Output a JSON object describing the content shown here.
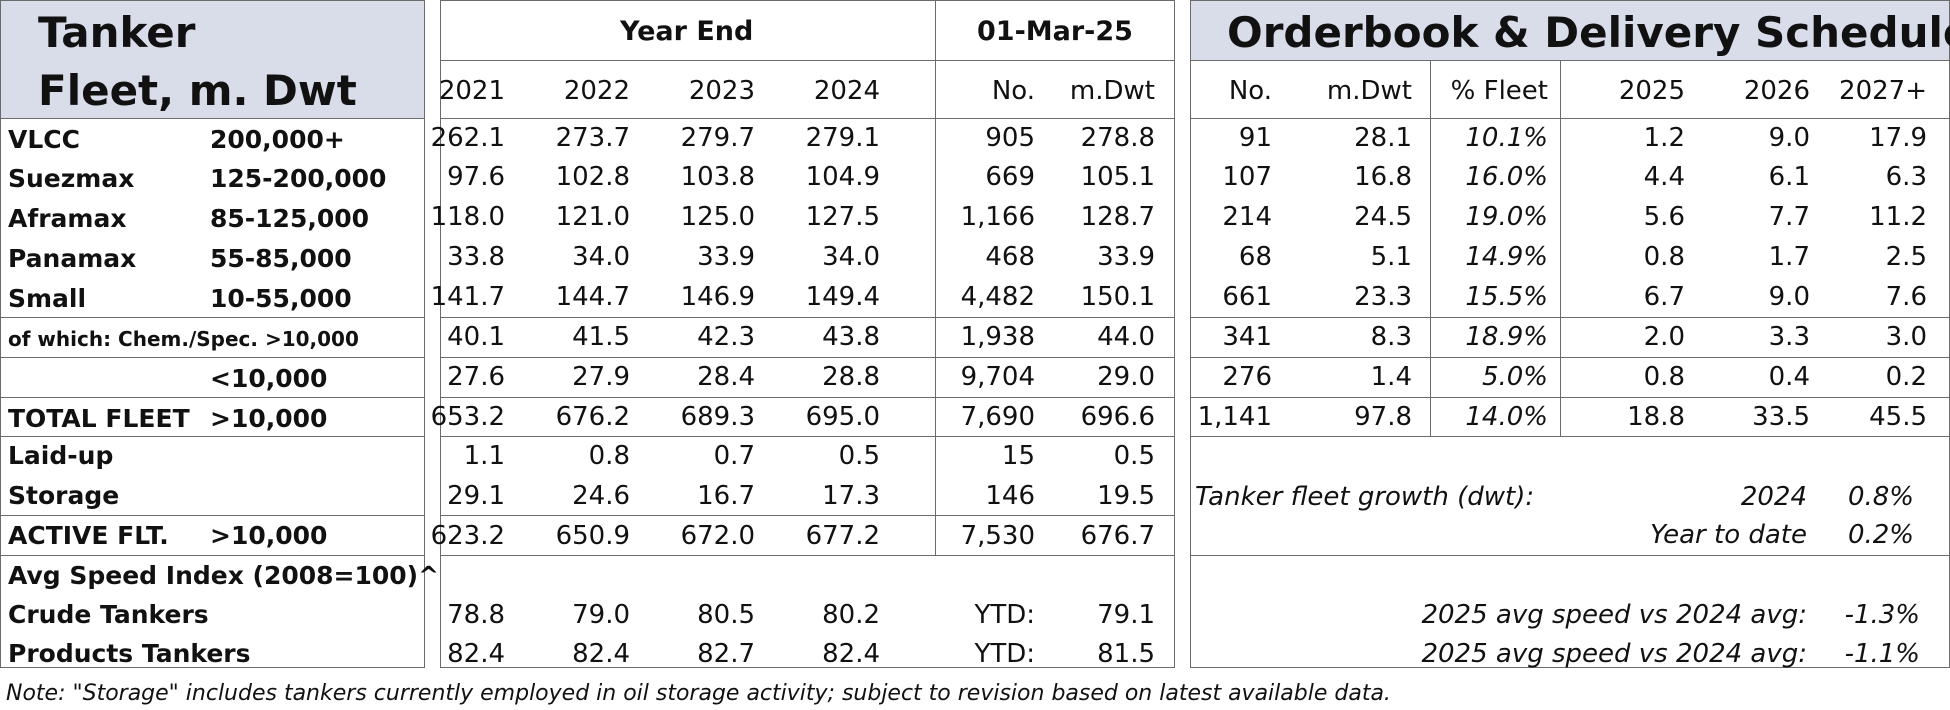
{
  "left_title": [
    "Tanker",
    "Fleet, m. Dwt"
  ],
  "mid_header": {
    "year_end": "Year End",
    "date": "01-Mar-25",
    "columns": [
      "2021",
      "2022",
      "2023",
      "2024",
      "No.",
      "m.Dwt"
    ]
  },
  "right_header": {
    "title": "Orderbook & Delivery Schedule",
    "columns": [
      "No.",
      "m.Dwt",
      "% Fleet",
      "2025",
      "2026",
      "2027+"
    ]
  },
  "fleet_rows": [
    {
      "name": "VLCC",
      "size": "200,000+",
      "ye": [
        "262.1",
        "273.7",
        "279.7",
        "279.1"
      ],
      "no": "905",
      "dwt": "278.8",
      "ob": [
        "91",
        "28.1",
        "10.1%",
        "1.2",
        "9.0",
        "17.9"
      ]
    },
    {
      "name": "Suezmax",
      "size": "125-200,000",
      "ye": [
        "97.6",
        "102.8",
        "103.8",
        "104.9"
      ],
      "no": "669",
      "dwt": "105.1",
      "ob": [
        "107",
        "16.8",
        "16.0%",
        "4.4",
        "6.1",
        "6.3"
      ]
    },
    {
      "name": "Aframax",
      "size": "85-125,000",
      "ye": [
        "118.0",
        "121.0",
        "125.0",
        "127.5"
      ],
      "no": "1,166",
      "dwt": "128.7",
      "ob": [
        "214",
        "24.5",
        "19.0%",
        "5.6",
        "7.7",
        "11.2"
      ]
    },
    {
      "name": "Panamax",
      "size": "55-85,000",
      "ye": [
        "33.8",
        "34.0",
        "33.9",
        "34.0"
      ],
      "no": "468",
      "dwt": "33.9",
      "ob": [
        "68",
        "5.1",
        "14.9%",
        "0.8",
        "1.7",
        "2.5"
      ]
    },
    {
      "name": "Small",
      "size": "10-55,000",
      "ye": [
        "141.7",
        "144.7",
        "146.9",
        "149.4"
      ],
      "no": "4,482",
      "dwt": "150.1",
      "ob": [
        "661",
        "23.3",
        "15.5%",
        "6.7",
        "9.0",
        "7.6"
      ]
    },
    {
      "name": "of which: Chem./Spec. >10,000",
      "size": "",
      "ye": [
        "40.1",
        "41.5",
        "42.3",
        "43.8"
      ],
      "no": "1,938",
      "dwt": "44.0",
      "ob": [
        "341",
        "8.3",
        "18.9%",
        "2.0",
        "3.3",
        "3.0"
      ]
    },
    {
      "name": "",
      "size": "<10,000",
      "ye": [
        "27.6",
        "27.9",
        "28.4",
        "28.8"
      ],
      "no": "9,704",
      "dwt": "29.0",
      "ob": [
        "276",
        "1.4",
        "5.0%",
        "0.8",
        "0.4",
        "0.2"
      ]
    },
    {
      "name": "TOTAL FLEET",
      "size": ">10,000",
      "ye": [
        "653.2",
        "676.2",
        "689.3",
        "695.0"
      ],
      "no": "7,690",
      "dwt": "696.6",
      "ob": [
        "1,141",
        "97.8",
        "14.0%",
        "18.8",
        "33.5",
        "45.5"
      ]
    }
  ],
  "laidup": {
    "name": "Laid-up",
    "ye": [
      "1.1",
      "0.8",
      "0.7",
      "0.5"
    ],
    "no": "15",
    "dwt": "0.5"
  },
  "storage": {
    "name": "Storage",
    "ye": [
      "29.1",
      "24.6",
      "16.7",
      "17.3"
    ],
    "no": "146",
    "dwt": "19.5"
  },
  "active": {
    "name": "ACTIVE FLT.",
    "size": ">10,000",
    "ye": [
      "623.2",
      "650.9",
      "672.0",
      "677.2"
    ],
    "no": "7,530",
    "dwt": "676.7"
  },
  "speed": {
    "title": "Avg Speed Index (2008=100)^",
    "rows": [
      {
        "name": "Crude Tankers",
        "ye": [
          "78.8",
          "79.0",
          "80.5",
          "80.2"
        ],
        "ytd_label": "YTD:",
        "ytd": "79.1"
      },
      {
        "name": "Products Tankers",
        "ye": [
          "82.4",
          "82.4",
          "82.7",
          "82.4"
        ],
        "ytd_label": "YTD:",
        "ytd": "81.5"
      }
    ]
  },
  "growth": {
    "label": "Tanker fleet growth (dwt):",
    "year_label": "2024",
    "year_value": "0.8%",
    "ytd_label": "Year to date",
    "ytd_value": "0.2%"
  },
  "speed_change": [
    {
      "label": "2025 avg speed vs 2024 avg:",
      "value": "-1.3%"
    },
    {
      "label": "2025 avg speed vs 2024 avg:",
      "value": "-1.1%"
    }
  ],
  "note": "Note: \"Storage\" includes tankers currently employed in oil storage activity; subject to revision based on latest available data."
}
